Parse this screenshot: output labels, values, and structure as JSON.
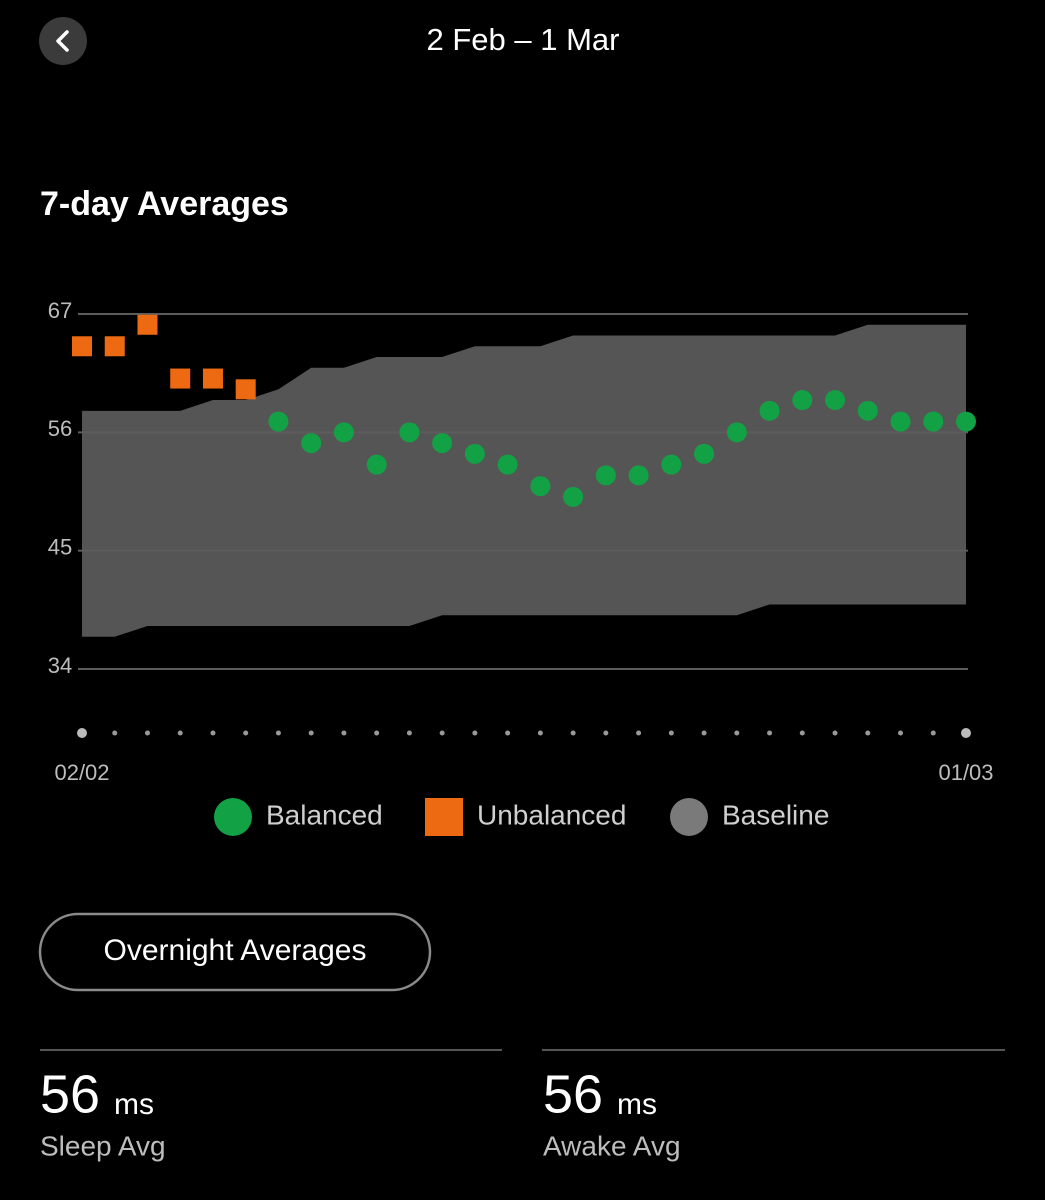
{
  "header": {
    "title": "2 Feb – 1 Mar"
  },
  "section_title": "7-day Averages",
  "chart_data": {
    "type": "scatter",
    "categories": [
      "02/02",
      null,
      null,
      null,
      null,
      null,
      null,
      null,
      null,
      null,
      null,
      null,
      null,
      null,
      null,
      null,
      null,
      null,
      null,
      null,
      null,
      null,
      null,
      null,
      null,
      null,
      null,
      "01/03"
    ],
    "ylim": [
      34,
      67
    ],
    "yticks": [
      34,
      45,
      56,
      67
    ],
    "grid": true,
    "series": [
      {
        "name": "Balanced",
        "color": "#13a146",
        "marker": "circle",
        "values": [
          null,
          null,
          null,
          null,
          null,
          null,
          57,
          55,
          56,
          53,
          56,
          55,
          54,
          53,
          51,
          50,
          52,
          52,
          53,
          54,
          56,
          58,
          59,
          59,
          58,
          57,
          57,
          57
        ]
      },
      {
        "name": "Unbalanced",
        "color": "#ee6a12",
        "marker": "square",
        "values": [
          64,
          64,
          66,
          61,
          61,
          60,
          null,
          null,
          null,
          null,
          null,
          null,
          null,
          null,
          null,
          null,
          null,
          null,
          null,
          null,
          null,
          null,
          null,
          null,
          null,
          null,
          null,
          null
        ]
      },
      {
        "name": "Baseline",
        "color": "#555555",
        "legend_color": "#7a7a7a",
        "marker": "band",
        "high": [
          58,
          58,
          58,
          58,
          59,
          59,
          60,
          62,
          62,
          63,
          63,
          63,
          64,
          64,
          64,
          65,
          65,
          65,
          65,
          65,
          65,
          65,
          65,
          65,
          66,
          66,
          66,
          66
        ],
        "low": [
          37,
          37,
          38,
          38,
          38,
          38,
          38,
          38,
          38,
          38,
          38,
          39,
          39,
          39,
          39,
          39,
          39,
          39,
          39,
          39,
          39,
          40,
          40,
          40,
          40,
          40,
          40,
          40
        ]
      }
    ]
  },
  "button": "Overnight Averages",
  "stats": [
    {
      "value": 56,
      "unit": "ms",
      "label": "Sleep Avg"
    },
    {
      "value": 56,
      "unit": "ms",
      "label": "Awake Avg"
    }
  ]
}
